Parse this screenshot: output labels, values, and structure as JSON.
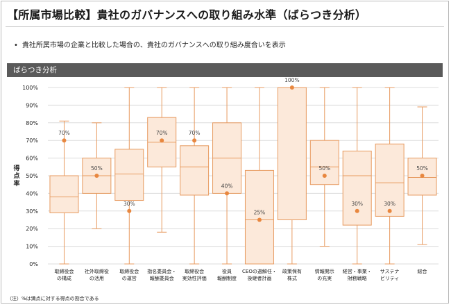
{
  "page": {
    "title": "【所属市場比較】貴社のガバナンスへの取り組み水準（ばらつき分析）",
    "subtitle": "貴社所属市場の企業と比較した場合の、貴社のガバナンスへの取り組み度合いを表示",
    "panel_title": "ばらつき分析",
    "footnote": "（注）%は満点に対する得点の割合である"
  },
  "colors": {
    "box_fill": "#fce9da",
    "box_stroke": "#e79a5f",
    "marker": "#e8873f",
    "header_bg": "#5a5a5a"
  },
  "chart_data": {
    "type": "boxplot",
    "ylabel": "得点率",
    "ylim": [
      0,
      100
    ],
    "yticks": [
      "0%",
      "10%",
      "20%",
      "30%",
      "40%",
      "50%",
      "60%",
      "70%",
      "80%",
      "90%",
      "100%"
    ],
    "categories": [
      [
        "取締役会",
        "の構成"
      ],
      [
        "社外取締役",
        "の活用"
      ],
      [
        "取締役会",
        "の運営"
      ],
      [
        "指名委員会・",
        "報酬委員会"
      ],
      [
        "取締役会",
        "実効性評価"
      ],
      [
        "役員",
        "報酬制度"
      ],
      [
        "CEOの選解任・",
        "後継者計画"
      ],
      [
        "政策保有",
        "株式"
      ],
      [
        "情報開示",
        "の充実"
      ],
      [
        "経営・事業・",
        "財務戦略"
      ],
      [
        "サステナ",
        "ビリティ"
      ],
      [
        "総合"
      ]
    ],
    "boxes": [
      {
        "min": 0,
        "q1": 29,
        "median": 38,
        "q3": 50,
        "max": 81
      },
      {
        "min": 20,
        "q1": 40,
        "median": 50,
        "q3": 60,
        "max": 80
      },
      {
        "min": 0,
        "q1": 36,
        "median": 51,
        "q3": 65,
        "max": 100
      },
      {
        "min": 18,
        "q1": 55,
        "median": 69,
        "q3": 83,
        "max": 100
      },
      {
        "min": 0,
        "q1": 39,
        "median": 55,
        "q3": 67,
        "max": 100
      },
      {
        "min": 0,
        "q1": 40,
        "median": 60,
        "q3": 80,
        "max": 100
      },
      {
        "min": 0,
        "q1": 0,
        "median": 25,
        "q3": 53,
        "max": 100
      },
      {
        "min": 0,
        "q1": 25,
        "median": 100,
        "q3": 100,
        "max": 100
      },
      {
        "min": 10,
        "q1": 45,
        "median": 55,
        "q3": 70,
        "max": 100
      },
      {
        "min": 0,
        "q1": 22,
        "median": 50,
        "q3": 64,
        "max": 100
      },
      {
        "min": 0,
        "q1": 27,
        "median": 46,
        "q3": 68,
        "max": 100
      },
      {
        "min": 11,
        "q1": 39,
        "median": 49,
        "q3": 60,
        "max": 89
      }
    ],
    "company_values": [
      70,
      50,
      30,
      70,
      70,
      40,
      25,
      100,
      50,
      30,
      30,
      50
    ],
    "company_labels": [
      "70%",
      "50%",
      "30%",
      "70%",
      "70%",
      "40%",
      "25%",
      "100%",
      "50%",
      "30%",
      "30%",
      "50%"
    ],
    "grid": true
  }
}
